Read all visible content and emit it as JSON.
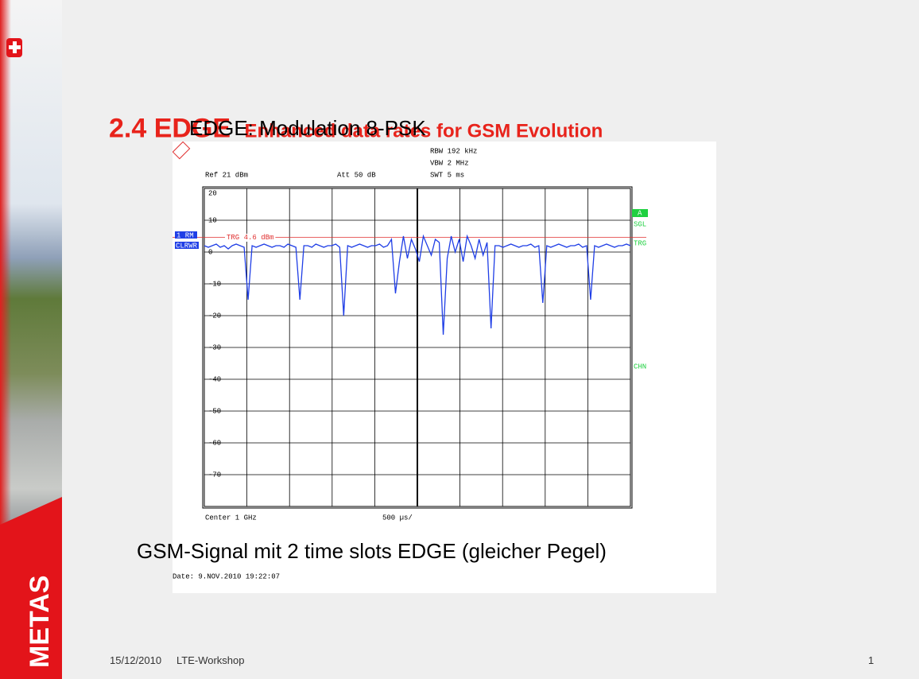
{
  "slide": {
    "title": "2.4 EDGE",
    "subtitle": "Enhanced data rates for GSM Evolution",
    "heading": "EDGE: Modulation 8-PSK",
    "caption": "GSM-Signal  mit 2 time slots EDGE (gleicher Pegel)",
    "logo": "METAS",
    "footer": {
      "date": "15/12/2010",
      "event": "LTE-Workshop",
      "page": "1"
    }
  },
  "chart_data": {
    "type": "line",
    "ylim": [
      -80,
      20
    ],
    "yticks": [
      20,
      10,
      0,
      -10,
      -20,
      -30,
      -40,
      -50,
      -60,
      -70
    ],
    "color": "#1f3ee6",
    "grid": true,
    "values": [
      2,
      1.5,
      2,
      2.5,
      1.5,
      2,
      1,
      2,
      2.5,
      2,
      1.5,
      -15,
      2,
      1.5,
      2,
      2.5,
      2,
      1.5,
      2,
      2,
      1.5,
      2.5,
      2,
      1.5,
      -15,
      2,
      2,
      1.5,
      2.5,
      2,
      1.5,
      2,
      2,
      2.5,
      1.5,
      -20,
      2,
      1.5,
      2,
      2.5,
      2,
      1.5,
      2,
      2,
      2.5,
      1.5,
      2,
      4,
      -13,
      -3,
      5,
      -2,
      4,
      1,
      -3,
      5,
      2,
      -1,
      4,
      3,
      -26,
      -2,
      5,
      0,
      4,
      -3,
      5,
      2,
      -2,
      4,
      -1,
      3,
      -24,
      2,
      2,
      1.5,
      2,
      2.5,
      2,
      1.5,
      2,
      2,
      2.5,
      1.5,
      2,
      -16,
      2,
      1.5,
      2,
      2.5,
      2,
      1.5,
      2,
      2,
      2.5,
      1.5,
      2,
      -15,
      2,
      1.5,
      2,
      2.5,
      2,
      1.5,
      2,
      2,
      2.5,
      2
    ],
    "trigger": {
      "value": 4.6,
      "label": "TRG 4.6 dBm",
      "color": "#e03030"
    },
    "header": {
      "rbw": "RBW 192 kHz",
      "vbw": "VBW 2 MHz",
      "swt": "SWT 5 ms",
      "ref": "Ref  21 dBm",
      "att": "Att  50 dB"
    },
    "footer": {
      "center": "Center 1 GHz",
      "span": "500 µs/",
      "date": "Date: 9.NOV.2010  19:22:07"
    },
    "side_labels": {
      "trace": "1 RM",
      "mode": "CLRWR",
      "a": "A",
      "sgl": "SGL",
      "trg": "TRG",
      "chn": "CHN"
    }
  }
}
